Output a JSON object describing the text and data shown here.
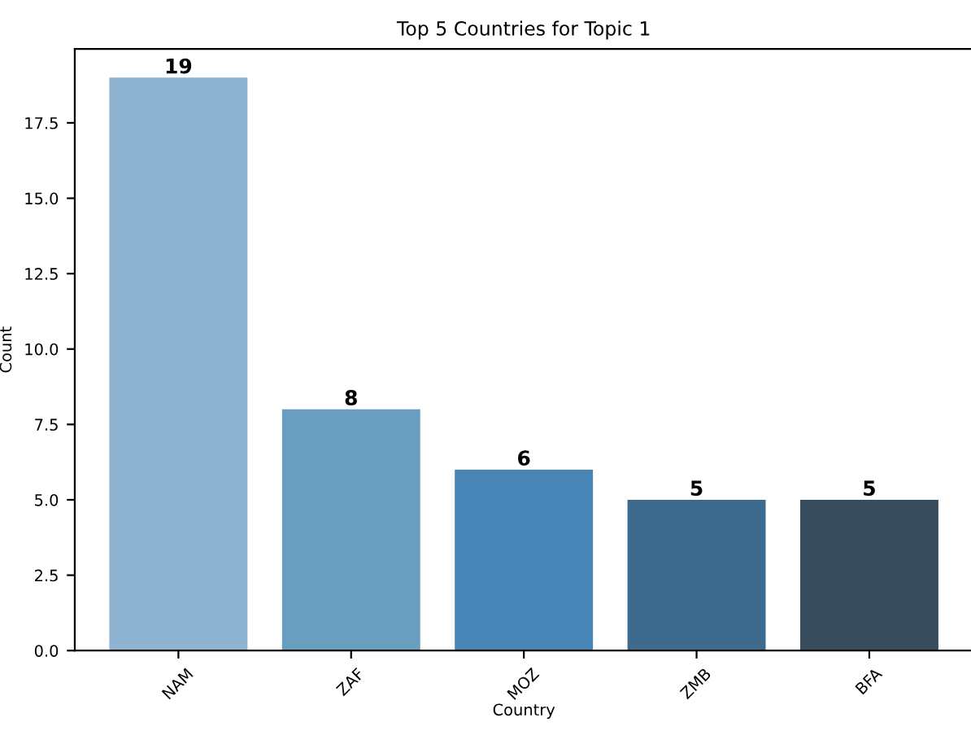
{
  "chart_data": {
    "type": "bar",
    "title": "Top 5 Countries for Topic 1",
    "xlabel": "Country",
    "ylabel": "Count",
    "categories": [
      "NAM",
      "ZAF",
      "MOZ",
      "ZMB",
      "BFA"
    ],
    "values": [
      19,
      8,
      6,
      5,
      5
    ],
    "colors": [
      "#8fb4d2",
      "#6a9ec0",
      "#4685b5",
      "#3e6a8e",
      "#374c5c"
    ],
    "data_labels": true,
    "ylim": [
      0,
      19.95
    ],
    "yticks": [
      {
        "value": 0,
        "label": "0.0"
      },
      {
        "value": 2.5,
        "label": "2.5"
      },
      {
        "value": 5,
        "label": "5.0"
      },
      {
        "value": 7.5,
        "label": "7.5"
      },
      {
        "value": 10,
        "label": "10.0"
      },
      {
        "value": 12.5,
        "label": "12.5"
      },
      {
        "value": 15,
        "label": "15.0"
      },
      {
        "value": 17.5,
        "label": "17.5"
      }
    ],
    "grid": false,
    "legend": false
  }
}
